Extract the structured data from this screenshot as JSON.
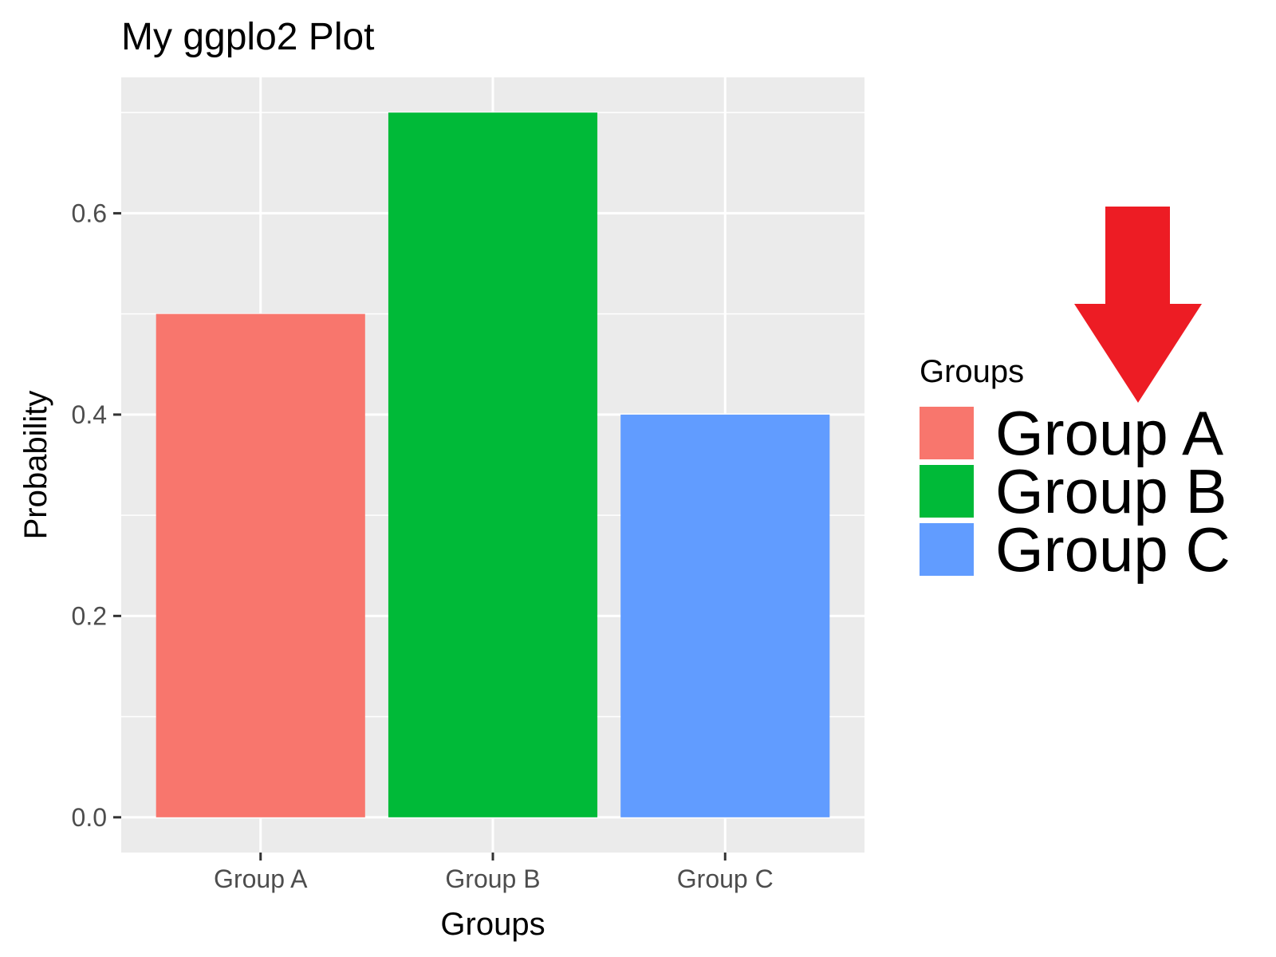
{
  "chart_data": {
    "type": "bar",
    "title": "My ggplo2 Plot",
    "xlabel": "Groups",
    "ylabel": "Probability",
    "categories": [
      "Group A",
      "Group B",
      "Group C"
    ],
    "values": [
      0.5,
      0.7,
      0.4
    ],
    "colors": [
      "#F8766D",
      "#00BA38",
      "#619CFF"
    ],
    "ylim": [
      -0.035,
      0.735
    ],
    "yticks": [
      0.0,
      0.2,
      0.4,
      0.6
    ],
    "ytick_labels": [
      "0.0",
      "0.2",
      "0.4",
      "0.6"
    ],
    "grid": true,
    "panel_background": "#EBEBEB",
    "legend": {
      "title": "Groups",
      "entries": [
        "Group A",
        "Group B",
        "Group C"
      ],
      "position": "right"
    },
    "annotation": {
      "shape": "down-arrow",
      "color": "#ED1C24",
      "points_to": "legend"
    }
  }
}
